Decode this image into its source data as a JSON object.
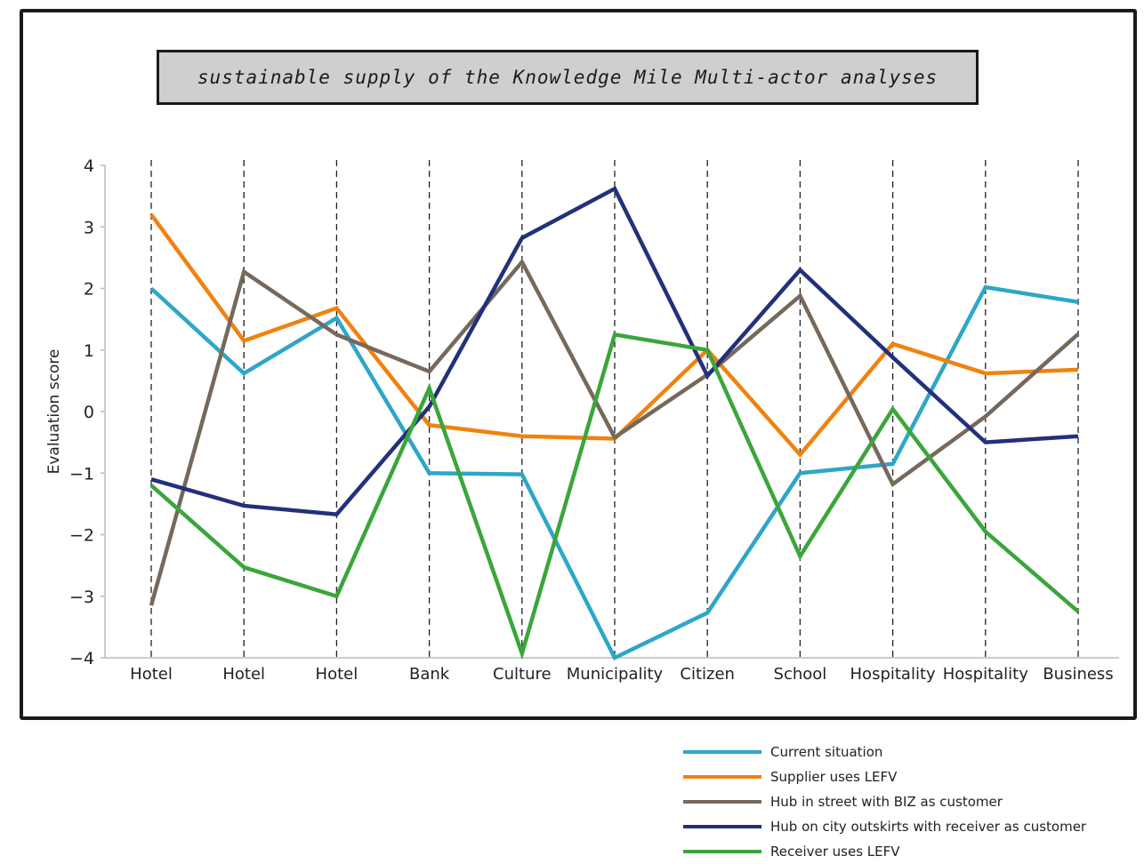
{
  "chart_data": {
    "type": "line",
    "title": "sustainable supply of the Knowledge Mile Multi-actor analyses",
    "xlabel": "",
    "ylabel": "Evaluation score",
    "ylim": [
      -4,
      4
    ],
    "yticks": [
      4,
      3,
      2,
      1,
      0,
      -1,
      -2,
      -3,
      -4
    ],
    "ytick_labels": [
      "4",
      "3",
      "2",
      "1",
      "0",
      "−1",
      "−2",
      "−3",
      "−4"
    ],
    "categories": [
      "Hotel",
      "Hotel",
      "Hotel",
      "Bank",
      "Culture",
      "Municipality",
      "Citizen",
      "School",
      "Hospitality",
      "Hospitality",
      "Business"
    ],
    "grid": "vertical dashed lines at each category",
    "legend_position": "bottom-right, outside plot",
    "series": [
      {
        "name": "Current situation",
        "color": "#2ea6c8",
        "values": [
          2.0,
          0.62,
          1.52,
          -1.0,
          -1.02,
          -4.0,
          -3.27,
          -1.0,
          -0.85,
          2.02,
          1.78
        ]
      },
      {
        "name": "Supplier uses LEFV",
        "color": "#f0820f",
        "values": [
          3.2,
          1.15,
          1.68,
          -0.22,
          -0.4,
          -0.44,
          1.0,
          -0.7,
          1.1,
          0.62,
          0.68
        ]
      },
      {
        "name": "Hub in street with BIZ as customer",
        "color": "#76695c",
        "values": [
          -3.15,
          2.27,
          1.25,
          0.65,
          2.43,
          -0.42,
          0.6,
          1.88,
          -1.18,
          -0.08,
          1.26
        ]
      },
      {
        "name": "Hub on city outskirts with receiver as customer",
        "color": "#23307a",
        "values": [
          -1.1,
          -1.53,
          -1.67,
          0.08,
          2.82,
          3.62,
          0.58,
          2.3,
          0.88,
          -0.5,
          -0.4
        ]
      },
      {
        "name": "Receiver uses LEFV",
        "color": "#3aa63a",
        "values": [
          -1.2,
          -2.53,
          -3.0,
          0.38,
          -3.93,
          1.25,
          1.0,
          -2.35,
          0.04,
          -1.95,
          -3.25
        ]
      }
    ]
  }
}
